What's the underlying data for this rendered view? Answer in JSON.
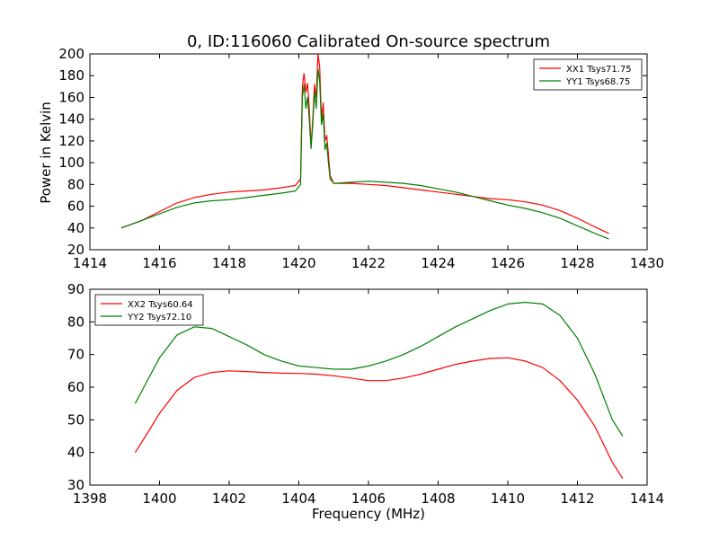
{
  "chart_data": [
    {
      "type": "line",
      "title": "0, ID:116060 Calibrated On-source spectrum",
      "xlabel": "",
      "ylabel": "Power in Kelvin",
      "xlim": [
        1414,
        1430
      ],
      "ylim": [
        20,
        200
      ],
      "xticks": [
        "1414",
        "1416",
        "1418",
        "1420",
        "1422",
        "1424",
        "1426",
        "1428",
        "1430"
      ],
      "yticks": [
        "20",
        "40",
        "60",
        "80",
        "100",
        "120",
        "140",
        "160",
        "180",
        "200"
      ],
      "grid": false,
      "legend": "top-right",
      "series": [
        {
          "name": "XX1 Tsys71.75",
          "color": "#ff0000",
          "points": [
            [
              1414.9,
              40
            ],
            [
              1415.5,
              47
            ],
            [
              1416.0,
              55
            ],
            [
              1416.5,
              63
            ],
            [
              1417.0,
              68
            ],
            [
              1417.5,
              71
            ],
            [
              1418.0,
              73
            ],
            [
              1418.5,
              74
            ],
            [
              1419.0,
              75
            ],
            [
              1419.5,
              77
            ],
            [
              1419.9,
              79
            ],
            [
              1420.05,
              85
            ],
            [
              1420.1,
              170
            ],
            [
              1420.15,
              182
            ],
            [
              1420.2,
              165
            ],
            [
              1420.25,
              173
            ],
            [
              1420.3,
              150
            ],
            [
              1420.35,
              115
            ],
            [
              1420.4,
              140
            ],
            [
              1420.45,
              172
            ],
            [
              1420.5,
              160
            ],
            [
              1420.55,
              200
            ],
            [
              1420.6,
              188
            ],
            [
              1420.65,
              140
            ],
            [
              1420.7,
              155
            ],
            [
              1420.75,
              120
            ],
            [
              1420.8,
              125
            ],
            [
              1420.85,
              108
            ],
            [
              1420.9,
              88
            ],
            [
              1421.0,
              81
            ],
            [
              1421.5,
              81
            ],
            [
              1422.0,
              80
            ],
            [
              1422.5,
              79
            ],
            [
              1423.0,
              77
            ],
            [
              1423.5,
              75
            ],
            [
              1424.0,
              73
            ],
            [
              1424.5,
              71
            ],
            [
              1425.0,
              69
            ],
            [
              1425.5,
              67
            ],
            [
              1426.0,
              66
            ],
            [
              1426.5,
              64
            ],
            [
              1427.0,
              61
            ],
            [
              1427.5,
              56
            ],
            [
              1428.0,
              49
            ],
            [
              1428.5,
              41
            ],
            [
              1428.9,
              35
            ]
          ]
        },
        {
          "name": "YY1 Tsys68.75",
          "color": "#008000",
          "points": [
            [
              1414.9,
              40
            ],
            [
              1415.5,
              47
            ],
            [
              1416.0,
              53
            ],
            [
              1416.5,
              59
            ],
            [
              1417.0,
              63
            ],
            [
              1417.5,
              65
            ],
            [
              1418.0,
              66
            ],
            [
              1418.5,
              68
            ],
            [
              1419.0,
              70
            ],
            [
              1419.5,
              72
            ],
            [
              1419.9,
              74
            ],
            [
              1420.05,
              80
            ],
            [
              1420.1,
              160
            ],
            [
              1420.15,
              172
            ],
            [
              1420.2,
              150
            ],
            [
              1420.25,
              160
            ],
            [
              1420.3,
              140
            ],
            [
              1420.35,
              113
            ],
            [
              1420.4,
              135
            ],
            [
              1420.45,
              165
            ],
            [
              1420.5,
              150
            ],
            [
              1420.55,
              186
            ],
            [
              1420.6,
              175
            ],
            [
              1420.65,
              135
            ],
            [
              1420.7,
              145
            ],
            [
              1420.75,
              112
            ],
            [
              1420.8,
              118
            ],
            [
              1420.85,
              100
            ],
            [
              1420.9,
              85
            ],
            [
              1421.0,
              81
            ],
            [
              1421.5,
              82
            ],
            [
              1422.0,
              83
            ],
            [
              1422.5,
              82
            ],
            [
              1423.0,
              81
            ],
            [
              1423.5,
              79
            ],
            [
              1424.0,
              76
            ],
            [
              1424.5,
              73
            ],
            [
              1425.0,
              69
            ],
            [
              1425.5,
              65
            ],
            [
              1426.0,
              61
            ],
            [
              1426.5,
              58
            ],
            [
              1427.0,
              54
            ],
            [
              1427.5,
              49
            ],
            [
              1428.0,
              42
            ],
            [
              1428.5,
              35
            ],
            [
              1428.9,
              30
            ]
          ]
        }
      ]
    },
    {
      "type": "line",
      "title": "",
      "xlabel": "Frequency (MHz)",
      "ylabel": "",
      "xlim": [
        1398,
        1414
      ],
      "ylim": [
        30,
        90
      ],
      "xticks": [
        "1398",
        "1400",
        "1402",
        "1404",
        "1406",
        "1408",
        "1410",
        "1412",
        "1414"
      ],
      "yticks": [
        "30",
        "40",
        "50",
        "60",
        "70",
        "80",
        "90"
      ],
      "grid": false,
      "legend": "top-left",
      "series": [
        {
          "name": "XX2 Tsys60.64",
          "color": "#ff0000",
          "points": [
            [
              1399.3,
              40
            ],
            [
              1399.6,
              45
            ],
            [
              1400.0,
              52
            ],
            [
              1400.5,
              59
            ],
            [
              1401.0,
              63
            ],
            [
              1401.5,
              64.5
            ],
            [
              1402.0,
              65
            ],
            [
              1402.5,
              64.8
            ],
            [
              1403.0,
              64.5
            ],
            [
              1403.5,
              64.3
            ],
            [
              1404.0,
              64.2
            ],
            [
              1404.5,
              64
            ],
            [
              1405.0,
              63.5
            ],
            [
              1405.5,
              62.8
            ],
            [
              1406.0,
              62
            ],
            [
              1406.5,
              62
            ],
            [
              1407.0,
              62.8
            ],
            [
              1407.5,
              64
            ],
            [
              1408.0,
              65.5
            ],
            [
              1408.5,
              67
            ],
            [
              1409.0,
              68
            ],
            [
              1409.5,
              68.8
            ],
            [
              1410.0,
              69
            ],
            [
              1410.5,
              68
            ],
            [
              1411.0,
              66
            ],
            [
              1411.5,
              62
            ],
            [
              1412.0,
              56
            ],
            [
              1412.5,
              48
            ],
            [
              1413.0,
              37
            ],
            [
              1413.3,
              32
            ]
          ]
        },
        {
          "name": "YY2 Tsys72.10",
          "color": "#008000",
          "points": [
            [
              1399.3,
              55
            ],
            [
              1399.6,
              61
            ],
            [
              1400.0,
              69
            ],
            [
              1400.5,
              76
            ],
            [
              1401.0,
              78.5
            ],
            [
              1401.5,
              78
            ],
            [
              1402.0,
              75.5
            ],
            [
              1402.5,
              73
            ],
            [
              1403.0,
              70
            ],
            [
              1403.5,
              68
            ],
            [
              1404.0,
              66.5
            ],
            [
              1404.5,
              66
            ],
            [
              1405.0,
              65.5
            ],
            [
              1405.5,
              65.5
            ],
            [
              1406.0,
              66.5
            ],
            [
              1406.5,
              68
            ],
            [
              1407.0,
              70
            ],
            [
              1407.5,
              72.5
            ],
            [
              1408.0,
              75.5
            ],
            [
              1408.5,
              78.5
            ],
            [
              1409.0,
              81
            ],
            [
              1409.5,
              83.5
            ],
            [
              1410.0,
              85.5
            ],
            [
              1410.5,
              86
            ],
            [
              1411.0,
              85.5
            ],
            [
              1411.5,
              82
            ],
            [
              1412.0,
              75
            ],
            [
              1412.5,
              64
            ],
            [
              1413.0,
              50
            ],
            [
              1413.3,
              45
            ]
          ]
        }
      ]
    }
  ]
}
